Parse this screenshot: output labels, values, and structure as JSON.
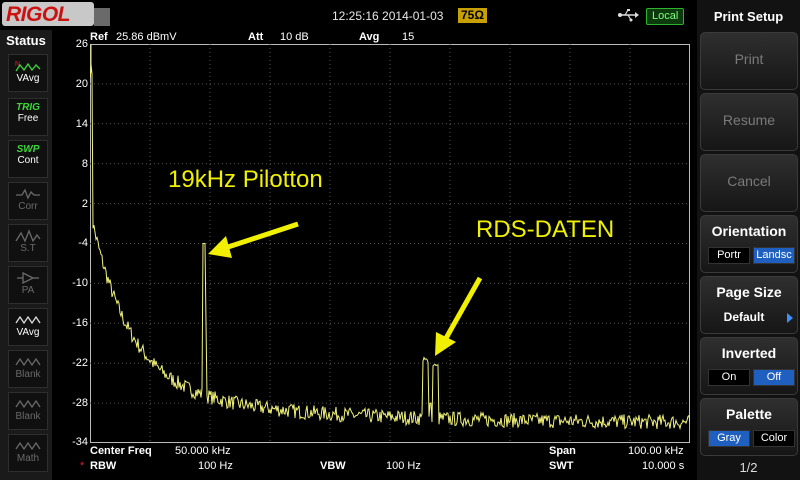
{
  "topbar": {
    "brand": "RIGOL",
    "datetime": "12:25:16 2014-01-03",
    "impedance": "75Ω",
    "status": "Local"
  },
  "status_panel": {
    "title": "Status",
    "items": [
      {
        "line1": "",
        "line2": "VAvg",
        "icon": "trace-avg-icon"
      },
      {
        "line1": "TRIG",
        "line2": "Free"
      },
      {
        "line1": "SWP",
        "line2": "Cont"
      },
      {
        "line1": "",
        "line2": "Corr",
        "icon": "corr-icon"
      },
      {
        "line1": "",
        "line2": "S.T",
        "icon": "st-icon"
      },
      {
        "line1": "",
        "line2": "PA",
        "icon": "pa-icon"
      },
      {
        "line1": "",
        "line2": "VAvg",
        "icon": "trace-avg-icon"
      },
      {
        "line1": "",
        "line2": "Blank",
        "icon": "trace-icon"
      },
      {
        "line1": "",
        "line2": "Blank",
        "icon": "trace-icon"
      },
      {
        "line1": "",
        "line2": "Math",
        "icon": "trace-icon"
      }
    ]
  },
  "header": {
    "ref_label": "Ref",
    "ref_value": "25.86 dBmV",
    "att_label": "Att",
    "att_value": "10 dB",
    "avg_label": "Avg",
    "avg_value": "15"
  },
  "y_axis": {
    "labels": [
      "26",
      "20",
      "14",
      "8",
      "2",
      "-4",
      "-10",
      "-16",
      "-22",
      "-28",
      "-34"
    ]
  },
  "footer": {
    "center_label": "Center Freq",
    "center_value": "50.000 kHz",
    "span_label": "Span",
    "span_value": "100.00 kHz",
    "rbw_mark": "*",
    "rbw_label": "RBW",
    "rbw_value": "100 Hz",
    "vbw_label": "VBW",
    "vbw_value": "100 Hz",
    "swt_label": "SWT",
    "swt_value": "10.000 s"
  },
  "annotations": {
    "pilot": "19kHz Pilotton",
    "rds": "RDS-DATEN"
  },
  "menu": {
    "title": "Print Setup",
    "print": "Print",
    "resume": "Resume",
    "cancel": "Cancel",
    "orientation": {
      "label": "Orientation",
      "options": [
        "Portr",
        "Landsc"
      ],
      "selected": "Landsc"
    },
    "page_size": {
      "label": "Page Size",
      "value": "Default"
    },
    "inverted": {
      "label": "Inverted",
      "options": [
        "On",
        "Off"
      ],
      "selected": "Off"
    },
    "palette": {
      "label": "Palette",
      "options": [
        "Gray",
        "Color"
      ],
      "selected": "Gray"
    },
    "page": "1/2"
  },
  "colors": {
    "trace": "#f2f27a",
    "annotation": "#f0f000",
    "selected": "#1f5fbf",
    "brand_red": "#cc1111"
  }
}
